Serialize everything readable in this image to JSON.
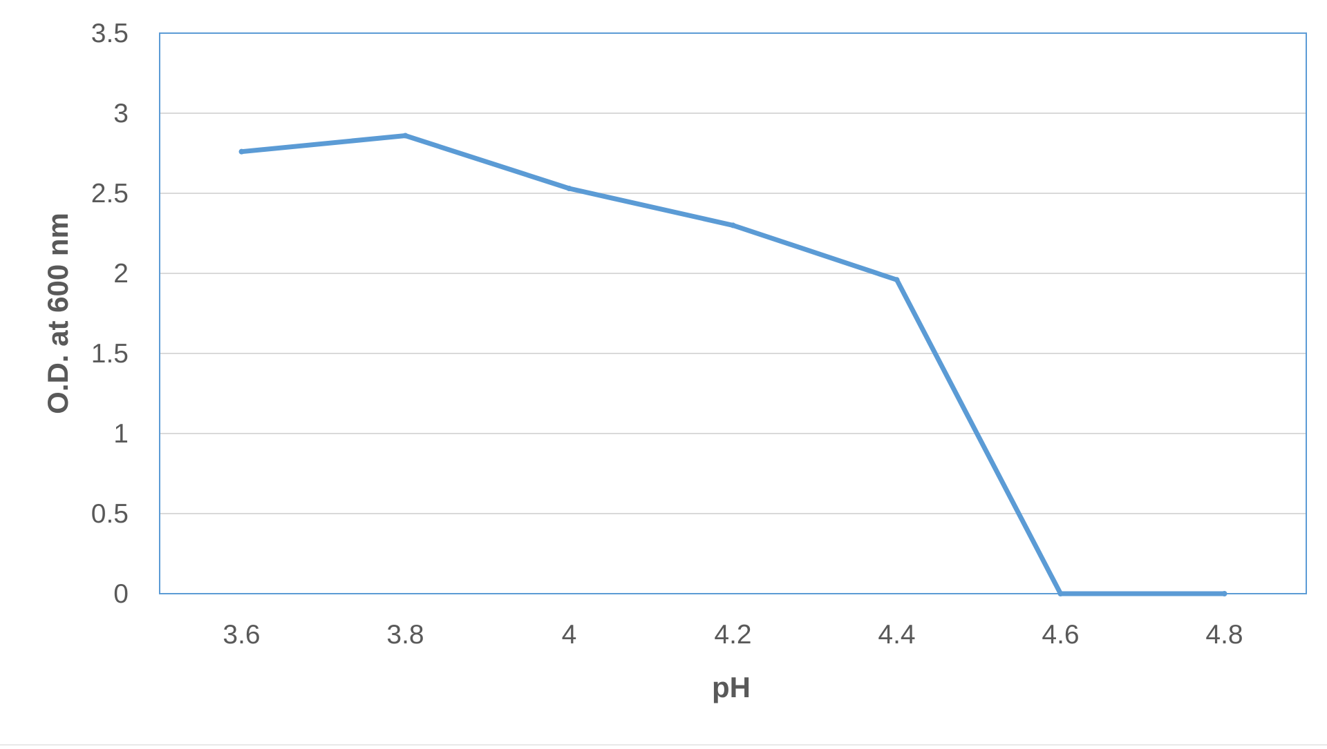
{
  "chart_data": {
    "type": "line",
    "title": "",
    "xlabel": "pH",
    "ylabel": "O.D. at 600 nm",
    "x": [
      3.6,
      3.8,
      4,
      4.2,
      4.4,
      4.6,
      4.8
    ],
    "x_tick_labels": [
      "3.6",
      "3.8",
      "4",
      "4.2",
      "4.4",
      "4.6",
      "4.8"
    ],
    "y_tick_labels": [
      "0",
      "0.5",
      "1",
      "1.5",
      "2",
      "2.5",
      "3",
      "3.5"
    ],
    "ylim": [
      0,
      3.5
    ],
    "series": [
      {
        "values": [
          2.76,
          2.86,
          2.53,
          2.3,
          1.96,
          0,
          0
        ],
        "color": "#5b9bd5"
      }
    ],
    "grid": true,
    "legend": "none",
    "frame_color": "#5b9bd5"
  }
}
